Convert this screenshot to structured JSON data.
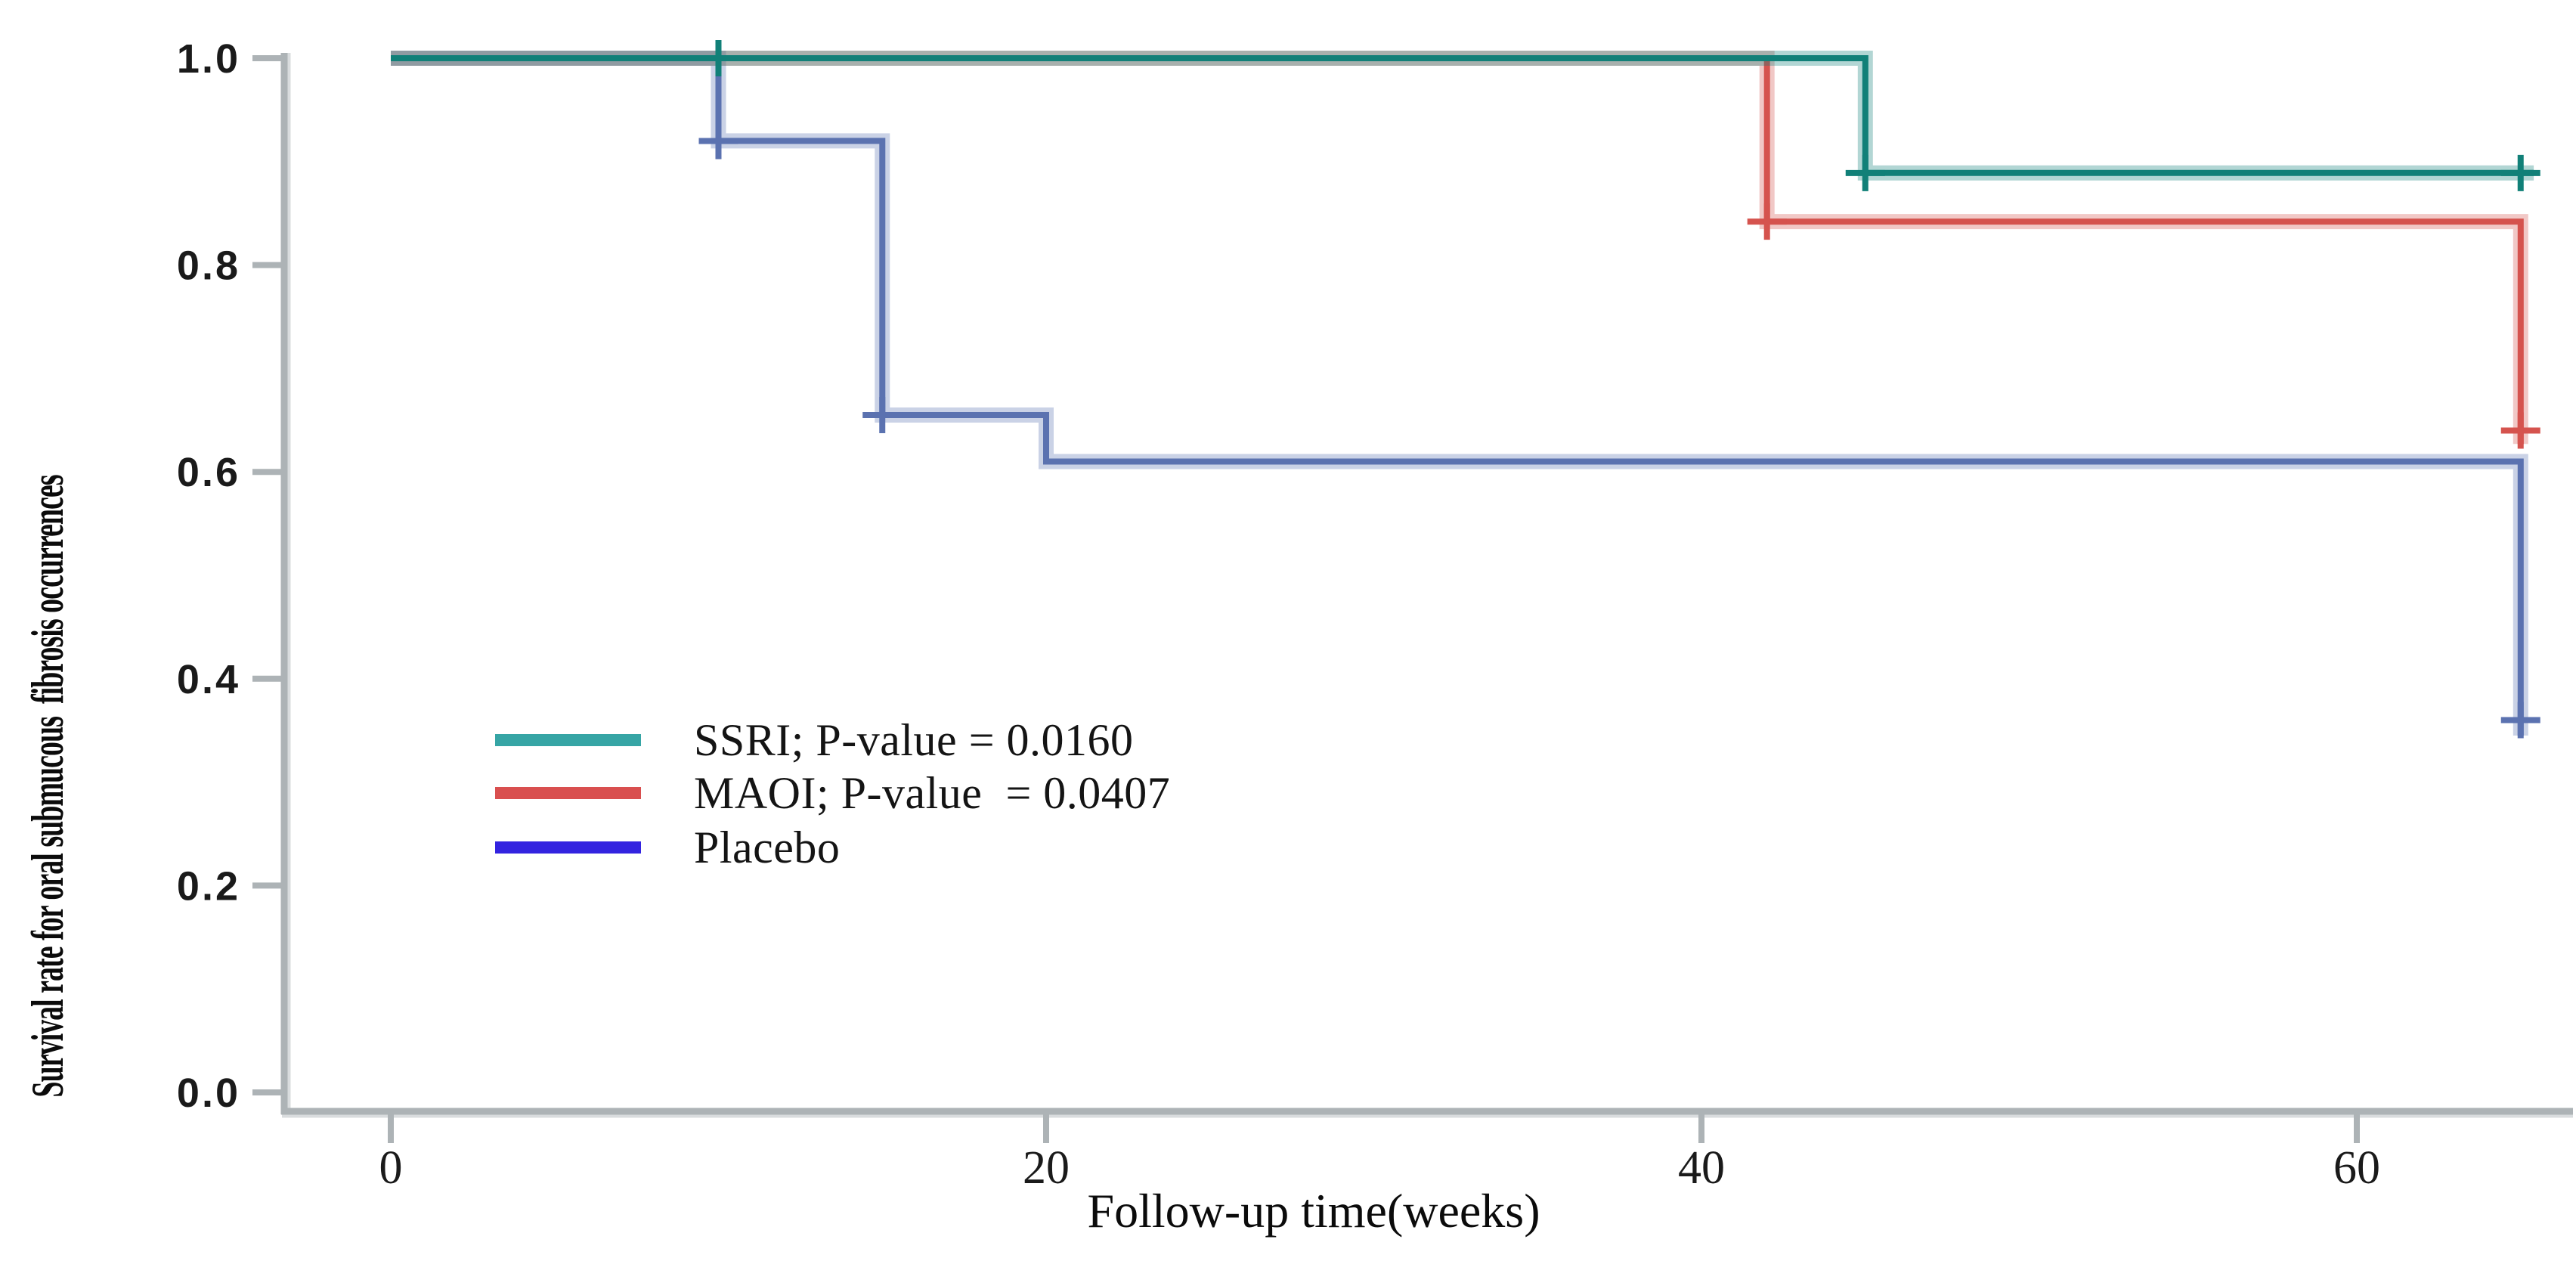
{
  "figure": {
    "background": "#ffffff"
  },
  "axes": {
    "xlabel": "Follow-up time(weeks)",
    "ylabel": "Survival rate for oral submucous  fibrosis occurrences",
    "axis_color": "#adb3b6",
    "axis_inner_color": "#d9dcde",
    "tick_label_color": "#1a1a1a"
  },
  "legend": {
    "items": [
      {
        "name": "SSRI",
        "label": "SSRI; P-value = 0.0160",
        "color": "#36a5a5"
      },
      {
        "name": "MAOI",
        "label": "MAOI; P-value  = 0.0407",
        "color": "#d94f4f"
      },
      {
        "name": "Placebo",
        "label": "Placebo",
        "color": "#3323e0"
      }
    ]
  },
  "chart_data": {
    "type": "line",
    "subtype": "kaplan-meier-step",
    "title": "",
    "xlabel": "Follow-up time(weeks)",
    "ylabel": "Survival rate for oral submucous fibrosis occurrences",
    "xlim": [
      0,
      66.5
    ],
    "ylim": [
      0.0,
      1.0
    ],
    "x_tick_values": [
      0,
      20,
      40,
      60
    ],
    "x_tick_labels": [
      "0",
      "20",
      "40",
      "60"
    ],
    "y_tick_values": [
      1.0,
      0.8,
      0.6,
      0.4,
      0.2,
      0.0
    ],
    "y_tick_labels": [
      "1.0",
      "0.8",
      "0.6",
      "0.4",
      "0.2",
      "0.0"
    ],
    "grid": false,
    "legend_position": "inside-left-center",
    "series": [
      {
        "name": "Placebo",
        "color": "#5b72b0",
        "halo_color": "#5b72b0",
        "points": [
          [
            0,
            1.0
          ],
          [
            10,
            1.0
          ],
          [
            10,
            0.92
          ],
          [
            15,
            0.92
          ],
          [
            15,
            0.655
          ],
          [
            20,
            0.655
          ],
          [
            20,
            0.61
          ],
          [
            65,
            0.61
          ],
          [
            65,
            0.345
          ]
        ],
        "censor_marks": [
          [
            10,
            0.92
          ],
          [
            15,
            0.655
          ],
          [
            65,
            0.36
          ]
        ]
      },
      {
        "name": "MAOI",
        "p_value": "0.0407",
        "color": "#d5534e",
        "halo_color": "#d5534e",
        "points": [
          [
            0,
            1.0
          ],
          [
            42,
            1.0
          ],
          [
            42,
            0.842
          ],
          [
            65,
            0.842
          ],
          [
            65,
            0.627
          ]
        ],
        "censor_marks": [
          [
            42,
            0.842
          ],
          [
            65,
            0.64
          ]
        ]
      },
      {
        "name": "SSRI",
        "p_value": "0.0160",
        "color": "#118078",
        "halo_color": "#118078",
        "points": [
          [
            0,
            1.0
          ],
          [
            45,
            1.0
          ],
          [
            45,
            0.889
          ],
          [
            65.4,
            0.889
          ]
        ],
        "censor_marks": [
          [
            10,
            1.0
          ],
          [
            45,
            0.889
          ],
          [
            65,
            0.889
          ]
        ]
      }
    ]
  }
}
